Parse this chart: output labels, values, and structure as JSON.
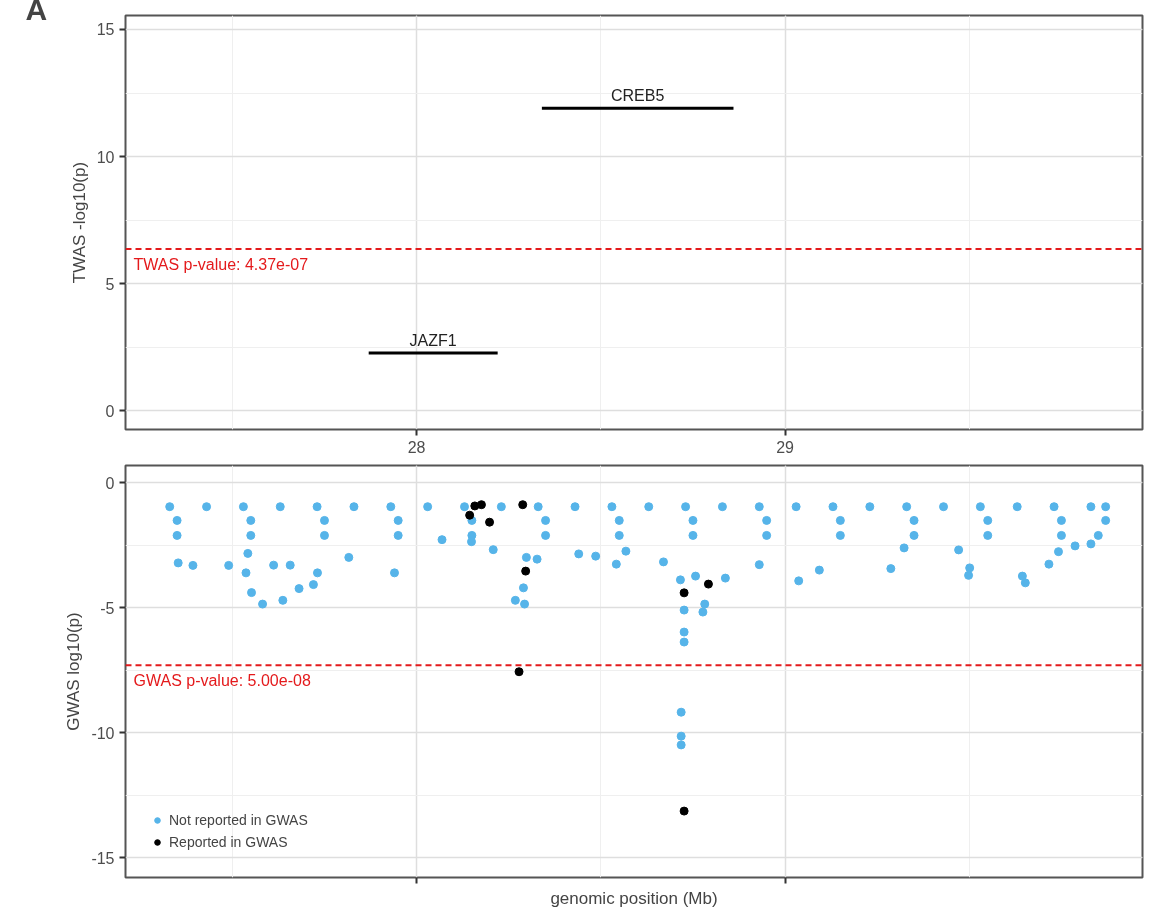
{
  "chart_data": [
    {
      "type": "line",
      "annotations": [
        "A",
        {
          "text": "TWAS p-value: 4.37e-07",
          "x": 27.21,
          "y": 6.36
        }
      ],
      "ylabel": "TWAS -log10(p)",
      "xlim": [
        27.21,
        29.97
      ],
      "ylim": [
        -0.74,
        15.55
      ],
      "xticks": [
        28,
        29
      ],
      "yticks": [
        0,
        5,
        10,
        15
      ],
      "grid": true,
      "marker": "none",
      "line_style": "solid",
      "tick_labels": "xy",
      "series": [
        {
          "name": "JAZF1",
          "color": "#000000",
          "x": [
            27.87,
            28.22
          ],
          "values": [
            2.27,
            2.27
          ]
        },
        {
          "name": "CREB5",
          "color": "#000000",
          "x": [
            28.34,
            28.86
          ],
          "values": [
            11.9,
            11.9
          ]
        }
      ],
      "ref_lines": [
        {
          "axis": "y",
          "value": 6.36,
          "color": "#e41a1c",
          "line_style": "dashed"
        }
      ]
    },
    {
      "type": "scatter",
      "annotations": [
        {
          "text": "GWAS p-value: 5.00e-08",
          "x": 27.21,
          "y": -7.3
        }
      ],
      "xlabel": "genomic position (Mb)",
      "ylabel": "GWAS log10(p)",
      "xlim": [
        27.21,
        29.97
      ],
      "ylim": [
        -15.8,
        0.7
      ],
      "xticks": [
        28,
        29
      ],
      "yticks": [
        0,
        -5,
        -10,
        -15
      ],
      "grid": true,
      "tick_labels": "y",
      "legend": "bottom left",
      "marker": "circle",
      "series": [
        {
          "name": "Not reported in GWAS",
          "color": "#56b4e9",
          "x": [
            27.33,
            27.43,
            27.53,
            27.63,
            27.73,
            27.83,
            27.93,
            28.03,
            28.13,
            28.23,
            28.33,
            28.43,
            28.53,
            28.63,
            28.73,
            28.83,
            28.93,
            29.03,
            29.13,
            29.23,
            29.33,
            29.43,
            29.53,
            29.63,
            29.73,
            29.83,
            29.87,
            27.35,
            27.55,
            27.75,
            27.95,
            28.15,
            28.35,
            28.55,
            28.75,
            28.95,
            29.15,
            29.35,
            29.55,
            29.75,
            29.87,
            27.35,
            27.55,
            27.75,
            27.95,
            28.15,
            28.35,
            28.55,
            28.75,
            28.95,
            29.15,
            29.35,
            29.55,
            29.75,
            29.85,
            27.353,
            27.393,
            27.49,
            27.542,
            27.537,
            27.552,
            27.582,
            27.612,
            27.637,
            27.657,
            27.681,
            27.72,
            27.731,
            27.816,
            27.94,
            28.069,
            28.149,
            28.208,
            28.268,
            28.293,
            28.29,
            28.298,
            28.327,
            28.44,
            28.486,
            28.542,
            28.568,
            28.67,
            28.716,
            28.726,
            28.726,
            28.726,
            28.718,
            28.718,
            28.718,
            28.777,
            28.782,
            28.757,
            28.838,
            28.93,
            29.037,
            29.093,
            29.287,
            29.323,
            29.471,
            29.501,
            29.498,
            29.644,
            29.652,
            29.716,
            29.742,
            29.787,
            29.83
          ],
          "values": [
            -0.95,
            -0.95,
            -0.95,
            -0.95,
            -0.95,
            -0.95,
            -0.95,
            -0.95,
            -0.95,
            -0.95,
            -0.95,
            -0.95,
            -0.95,
            -0.95,
            -0.95,
            -0.95,
            -0.95,
            -0.95,
            -0.95,
            -0.95,
            -0.95,
            -0.95,
            -0.95,
            -0.95,
            -0.95,
            -0.95,
            -0.95,
            -1.5,
            -1.5,
            -1.5,
            -1.5,
            -1.5,
            -1.5,
            -1.5,
            -1.5,
            -1.5,
            -1.5,
            -1.5,
            -1.5,
            -1.5,
            -1.5,
            -2.1,
            -2.1,
            -2.1,
            -2.1,
            -2.1,
            -2.1,
            -2.1,
            -2.1,
            -2.1,
            -2.1,
            -2.1,
            -2.1,
            -2.1,
            -2.1,
            -3.2,
            -3.3,
            -3.3,
            -2.82,
            -3.6,
            -4.39,
            -4.85,
            -3.29,
            -4.7,
            -3.29,
            -4.23,
            -4.07,
            -3.6,
            -2.98,
            -3.6,
            -2.27,
            -2.35,
            -2.67,
            -4.7,
            -4.85,
            -4.2,
            -2.98,
            -3.05,
            -2.84,
            -2.93,
            -3.25,
            -2.73,
            -3.16,
            -3.88,
            -5.09,
            -5.97,
            -6.37,
            -9.18,
            -10.14,
            -10.49,
            -5.17,
            -4.85,
            -3.73,
            -3.81,
            -3.27,
            -3.92,
            -3.49,
            -3.43,
            -2.6,
            -2.68,
            -3.4,
            -3.7,
            -3.73,
            -4.0,
            -3.25,
            -2.75,
            -2.52,
            -2.44
          ]
        },
        {
          "name": "Reported in GWAS",
          "color": "#000000",
          "x": [
            28.144,
            28.158,
            28.176,
            28.198,
            28.288,
            28.296,
            28.278,
            28.726,
            28.792,
            28.726
          ],
          "values": [
            -1.29,
            -0.92,
            -0.87,
            -1.57,
            -0.87,
            -3.53,
            -7.56,
            -4.4,
            -4.05,
            -13.14
          ]
        }
      ],
      "ref_lines": [
        {
          "axis": "y",
          "value": -7.3,
          "color": "#e41a1c",
          "line_style": "dashed"
        }
      ]
    }
  ]
}
